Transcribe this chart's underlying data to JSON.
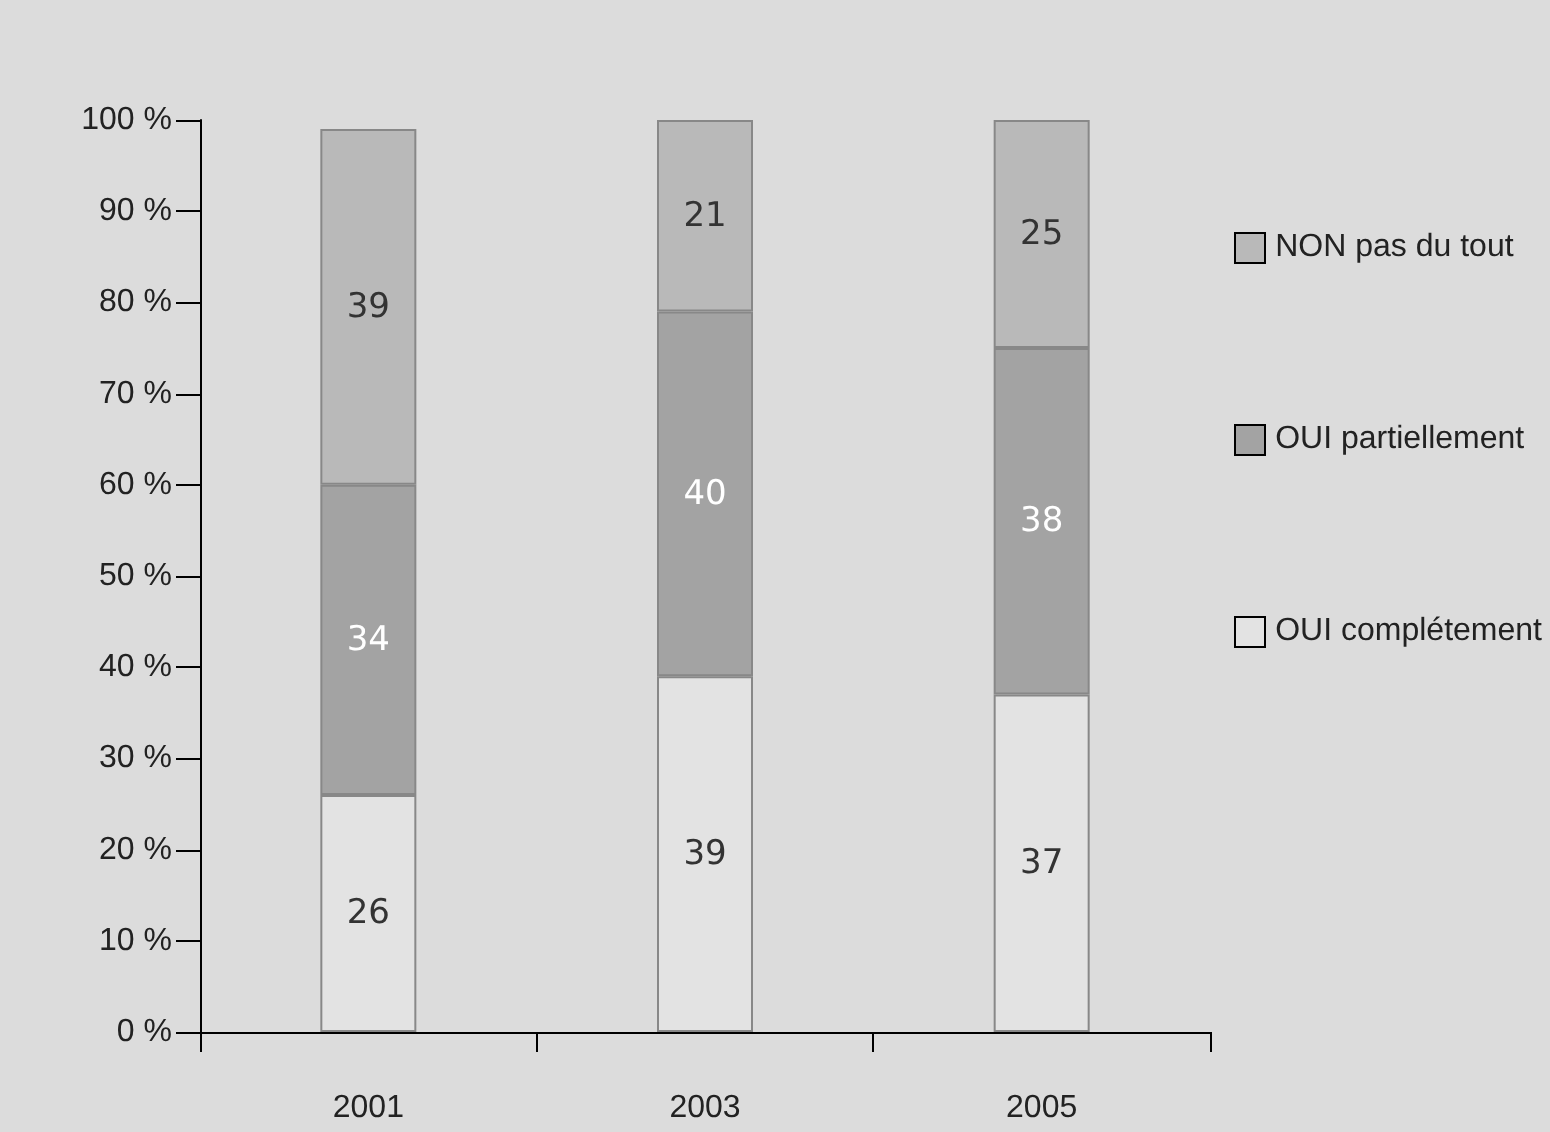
{
  "chart_data": {
    "type": "bar",
    "stacked": true,
    "categories": [
      "2001",
      "2003",
      "2005"
    ],
    "series": [
      {
        "name": "OUI complétement",
        "color": "#e3e3e3",
        "values": [
          26,
          39,
          37
        ]
      },
      {
        "name": "OUI partiellement",
        "color": "#a3a3a3",
        "values": [
          34,
          40,
          38
        ]
      },
      {
        "name": "NON pas du tout",
        "color": "#b9b9b9",
        "values": [
          39,
          21,
          25
        ]
      }
    ],
    "ylim": [
      0,
      100
    ],
    "yticks": [
      {
        "value": 0,
        "label": "0 %"
      },
      {
        "value": 10,
        "label": "10 %"
      },
      {
        "value": 20,
        "label": "20 %"
      },
      {
        "value": 30,
        "label": "30 %"
      },
      {
        "value": 40,
        "label": "40 %"
      },
      {
        "value": 50,
        "label": "50 %"
      },
      {
        "value": 60,
        "label": "60 %"
      },
      {
        "value": 70,
        "label": "70 %"
      },
      {
        "value": 80,
        "label": "80 %"
      },
      {
        "value": 90,
        "label": "90 %"
      },
      {
        "value": 100,
        "label": "100 %"
      }
    ],
    "data_labels": true,
    "grid": false,
    "legend": "right"
  }
}
